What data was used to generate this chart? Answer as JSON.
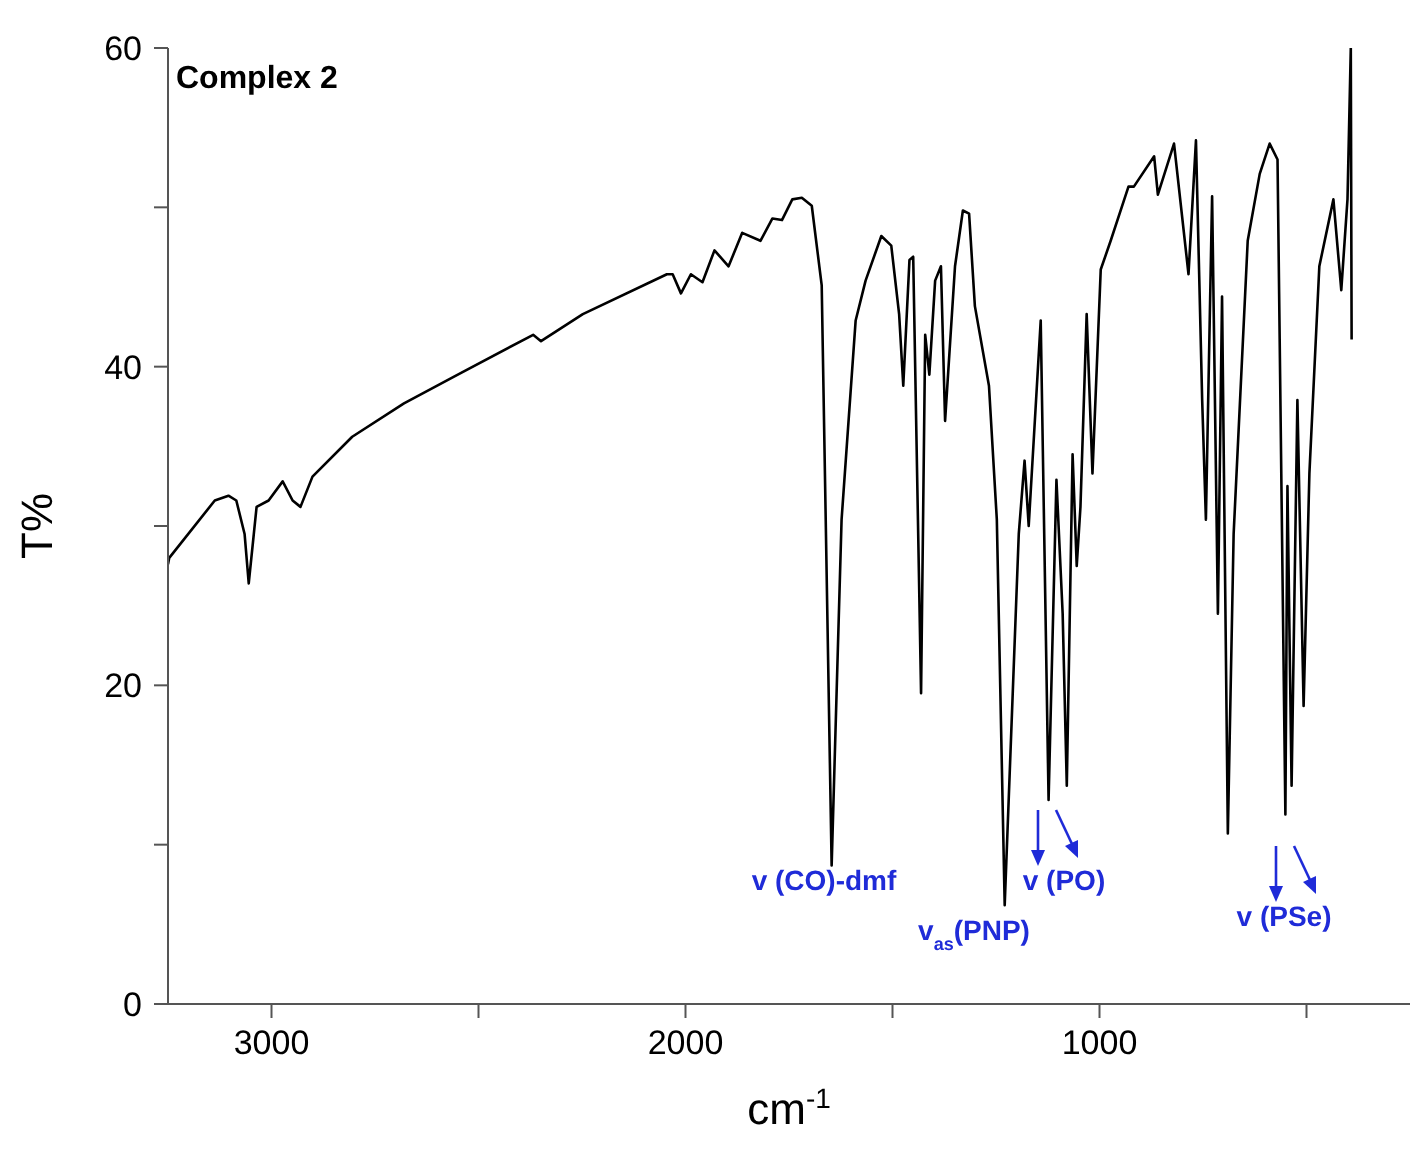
{
  "chart_data": {
    "type": "line",
    "title": "Complex 2",
    "xlabel": "cm$^{-1}$",
    "ylabel": "T%",
    "x": [
      3250,
      3247,
      3137,
      3104,
      3085,
      3065,
      3055,
      3036,
      3007,
      2973,
      2949,
      2930,
      2901,
      2805,
      2680,
      2550,
      2368,
      2349,
      2248,
      2045,
      2031,
      2011,
      1987,
      1959,
      1930,
      1896,
      1863,
      1819,
      1790,
      1767,
      1742,
      1719,
      1695,
      1671,
      1647,
      1623,
      1589,
      1565,
      1527,
      1503,
      1484,
      1474,
      1459,
      1450,
      1431,
      1421,
      1411,
      1397,
      1383,
      1373,
      1349,
      1330,
      1315,
      1301,
      1267,
      1248,
      1229,
      1195,
      1181,
      1171,
      1142,
      1123,
      1104,
      1089,
      1079,
      1065,
      1055,
      1046,
      1031,
      1017,
      997,
      973,
      930,
      917,
      868,
      859,
      820,
      785,
      767,
      752,
      743,
      728,
      714,
      704,
      690,
      676,
      642,
      613,
      589,
      570,
      551,
      546,
      536,
      522,
      507,
      493,
      469,
      435,
      416,
      401,
      393,
      391
    ],
    "series": [
      {
        "color": "#000000",
        "values": [
          27.6,
          28.0,
          31.6,
          31.9,
          31.6,
          29.5,
          26.4,
          31.2,
          31.6,
          32.8,
          31.6,
          31.2,
          33.1,
          35.6,
          37.7,
          39.5,
          42.0,
          41.6,
          43.3,
          45.8,
          45.8,
          44.6,
          45.8,
          45.3,
          47.3,
          46.3,
          48.4,
          47.9,
          49.3,
          49.2,
          50.5,
          50.6,
          50.1,
          45.1,
          8.7,
          30.4,
          42.9,
          45.4,
          48.2,
          47.6,
          43.3,
          38.8,
          46.7,
          46.9,
          19.5,
          42.0,
          39.5,
          45.4,
          46.3,
          36.6,
          46.3,
          49.8,
          49.6,
          43.8,
          38.8,
          30.4,
          6.2,
          29.5,
          34.1,
          30.0,
          42.9,
          12.8,
          32.9,
          24.5,
          13.7,
          34.5,
          27.5,
          31.2,
          43.3,
          33.3,
          46.1,
          47.9,
          51.3,
          51.3,
          53.2,
          50.8,
          54.0,
          45.8,
          54.2,
          37.9,
          30.4,
          50.7,
          24.5,
          44.4,
          10.7,
          29.5,
          47.9,
          52.1,
          54.0,
          53.0,
          11.9,
          32.5,
          13.7,
          37.9,
          18.7,
          33.3,
          46.3,
          50.5,
          44.8,
          50.5,
          60.0,
          41.7
        ]
      }
    ],
    "xlim": [
      3250,
      250
    ],
    "xticks": [
      3000,
      {
        "value": 2500,
        "label": null
      },
      2000,
      {
        "value": 1500,
        "label": null
      },
      1000,
      {
        "value": 500,
        "label": null
      }
    ],
    "ylim": [
      0,
      60
    ],
    "yticks": [
      0,
      {
        "value": 10,
        "label": null
      },
      20,
      {
        "value": 30,
        "label": null
      },
      40,
      {
        "value": 50,
        "label": null
      },
      60
    ],
    "grid": false,
    "legend": false,
    "marker": "none",
    "line_style": "solid",
    "annotations": [
      "v (CO)-dmf",
      "v$_{as}$(PNP)",
      "v (PO)",
      "v (PSe)"
    ]
  }
}
